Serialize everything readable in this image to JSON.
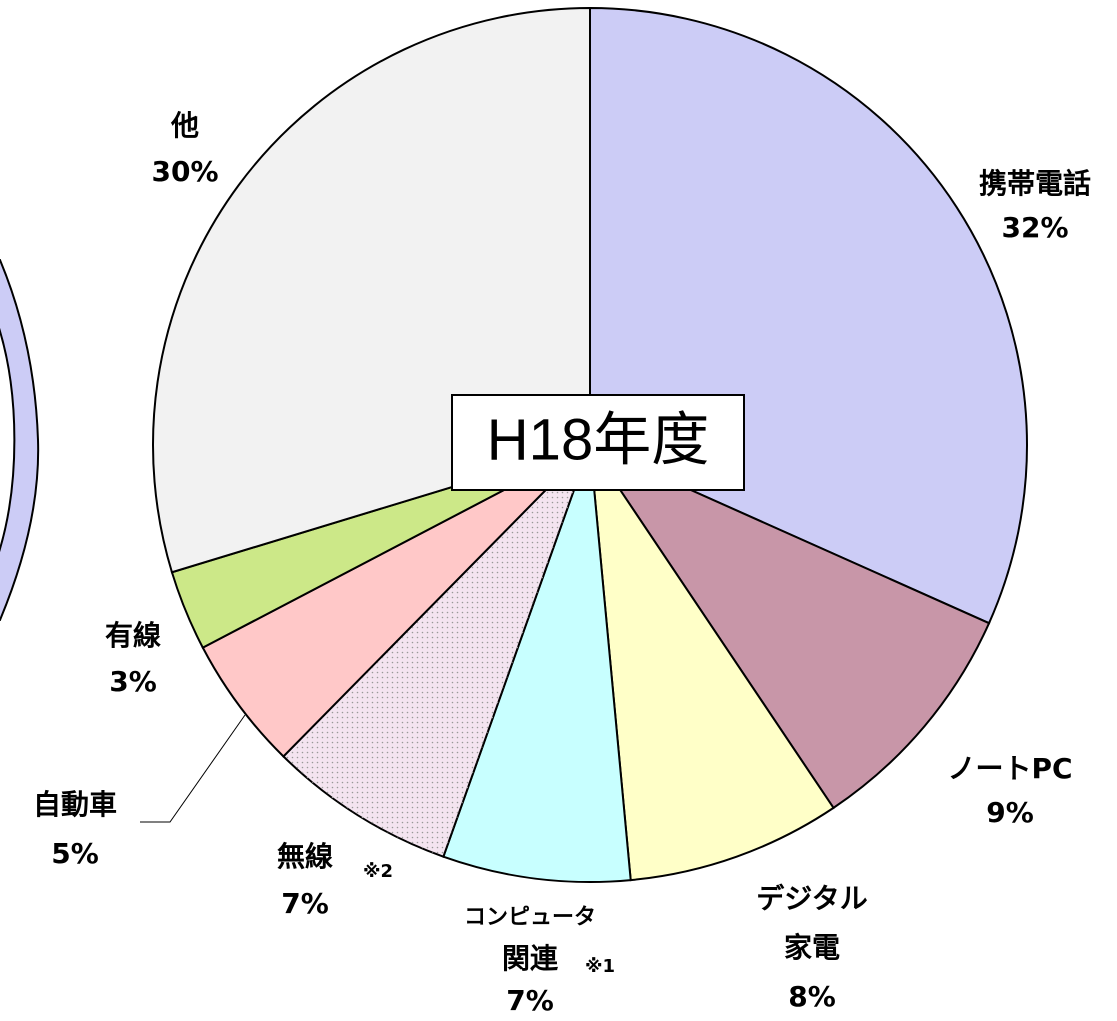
{
  "chart_data": {
    "type": "pie",
    "title": "H18年度",
    "categories": [
      [
        "携帯電話"
      ],
      [
        "ノートPC"
      ],
      [
        "デジタル",
        "家電"
      ],
      [
        "コンピュータ",
        "関連"
      ],
      [
        "無線"
      ],
      [
        "自動車"
      ],
      [
        "有線"
      ],
      [
        "他"
      ]
    ],
    "category_notes": [
      null,
      null,
      null,
      "※1",
      "※2",
      null,
      null,
      null
    ],
    "values": [
      32,
      9,
      8,
      7,
      7,
      5,
      3,
      30
    ],
    "value_labels": [
      "32%",
      "9%",
      "8%",
      "7%",
      "7%",
      "5%",
      "3%",
      "30%"
    ],
    "colors": [
      "#ccccf6",
      "#c896a8",
      "#ffffc8",
      "#c8ffff",
      "#f4e4f0",
      "#ffc8c8",
      "#cce888",
      "#f2f2f2"
    ]
  }
}
